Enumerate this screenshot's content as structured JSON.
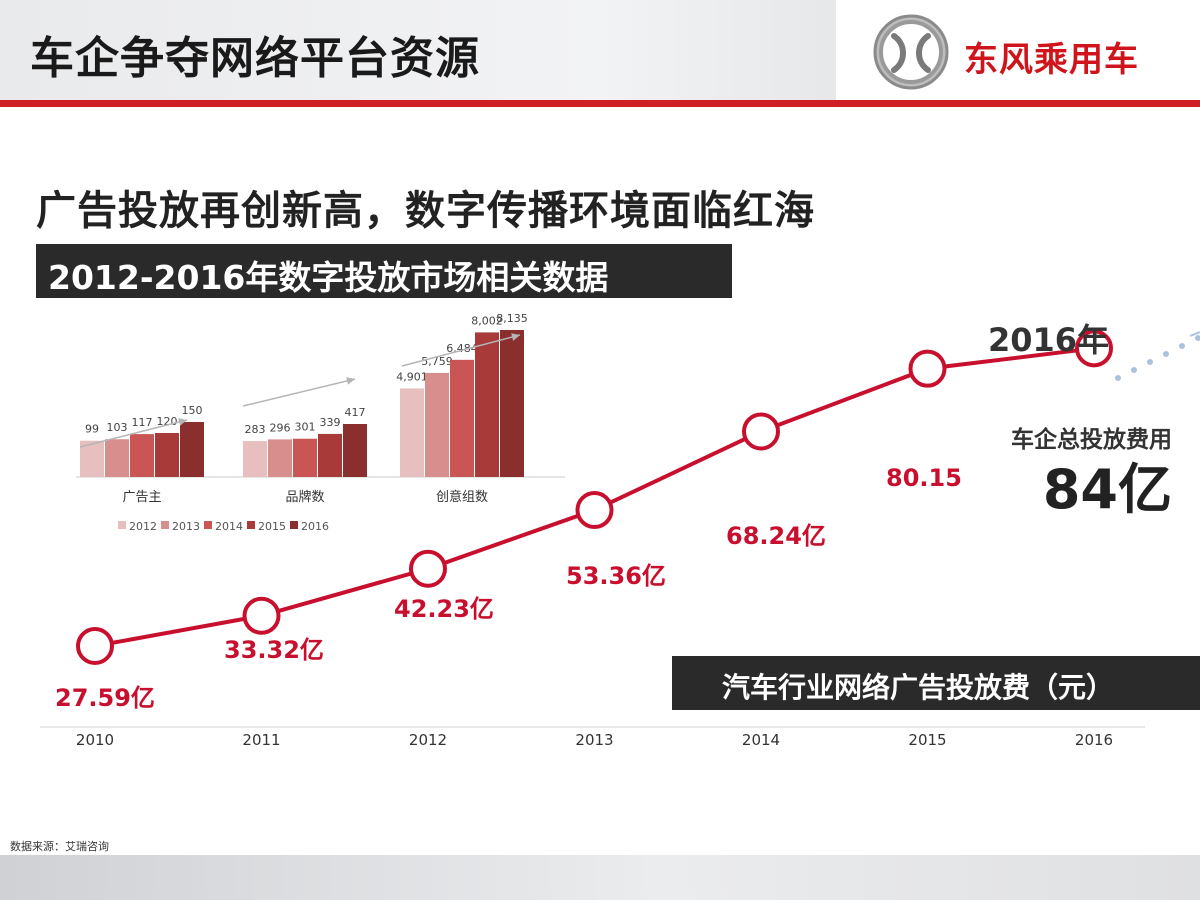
{
  "header": {
    "title": "车企争夺网络平台资源",
    "logo_text": "东风乘用车",
    "logo_icon": "dongfeng-logo-icon"
  },
  "headline": "广告投放再创新高，数字传播环境面临红海",
  "subtitle": "2012-2016年数字投放市场相关数据",
  "caption": "汽车行业网络广告投放费（元）",
  "source": "数据来源：艾瑞咨询",
  "chart_data": [
    {
      "type": "line",
      "title": "汽车行业网络广告投放费（元）",
      "x": [
        "2010",
        "2011",
        "2012",
        "2013",
        "2014",
        "2015",
        "2016"
      ],
      "values": [
        27.59,
        33.32,
        42.23,
        53.36,
        68.24,
        80.15,
        84
      ],
      "labels": [
        "27.59亿",
        "33.32亿",
        "42.23亿",
        "53.36亿",
        "68.24亿",
        "80.15",
        null
      ],
      "last_point_label": "2016年",
      "callout": {
        "label": "车企总投放费用",
        "value": "84亿"
      },
      "color": "#c8102e"
    },
    {
      "type": "bar",
      "categories": [
        "广告主",
        "品牌数",
        "创意组数"
      ],
      "series": [
        {
          "name": "2012",
          "values": [
            99,
            283,
            4901
          ],
          "color": "#e7bfbf"
        },
        {
          "name": "2013",
          "values": [
            103,
            296,
            5759
          ],
          "color": "#d98e8e"
        },
        {
          "name": "2014",
          "values": [
            117,
            301,
            6484
          ],
          "color": "#c95555"
        },
        {
          "name": "2015",
          "values": [
            120,
            339,
            8002
          ],
          "color": "#a83a3a"
        },
        {
          "name": "2016",
          "values": [
            150,
            417,
            8135
          ],
          "color": "#8a2e2e"
        }
      ],
      "value_labels": [
        [
          "99",
          "283",
          "4,901"
        ],
        [
          "103",
          "296",
          "5,759"
        ],
        [
          "117",
          "301",
          "6,484"
        ],
        [
          "120",
          "339",
          "8,002"
        ],
        [
          "150",
          "417",
          "8,135"
        ]
      ],
      "legend": "bottom"
    }
  ]
}
